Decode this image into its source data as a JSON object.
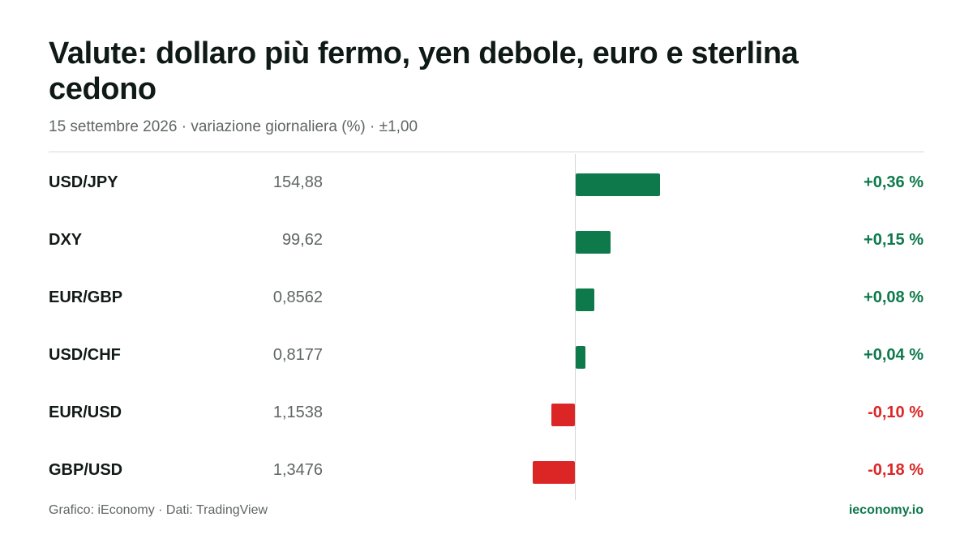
{
  "header": {
    "title": "Valute: dollaro più fermo, yen debole, euro e sterlina cedono",
    "subtitle": "15 settembre 2026 · variazione giornaliera (%) · ±1,00"
  },
  "footer": {
    "source": "Grafico: iEconomy · Dati: TradingView",
    "brand": "ieconomy.io"
  },
  "colors": {
    "positive": "#0e7a4c",
    "negative": "#dc2626"
  },
  "chart_data": {
    "type": "bar",
    "orientation": "horizontal",
    "categories": [
      "USD/JPY",
      "DXY",
      "EUR/GBP",
      "USD/CHF",
      "EUR/USD",
      "GBP/USD"
    ],
    "levels": [
      "154,88",
      "99,62",
      "0,8562",
      "0,8177",
      "1,1538",
      "1,3476"
    ],
    "values": [
      0.36,
      0.15,
      0.08,
      0.04,
      -0.1,
      -0.18
    ],
    "value_labels": [
      "+0,36 %",
      "+0,15 %",
      "+0,08 %",
      "+0,04 %",
      "-0,10 %",
      "-0,18 %"
    ],
    "xlim": [
      -1,
      1
    ],
    "title": "Valute: dollaro più fermo, yen debole, euro e sterlina cedono",
    "xlabel": "",
    "ylabel": ""
  }
}
